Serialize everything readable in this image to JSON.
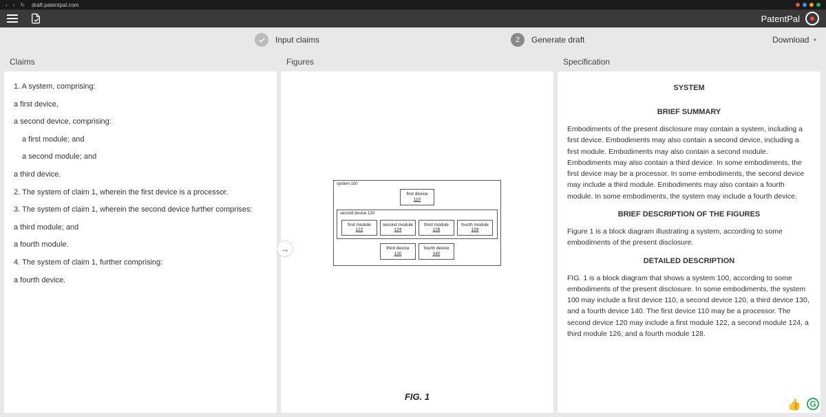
{
  "browser": {
    "url": "draft.patentpal.com",
    "ext_colors": [
      "#e74c3c",
      "#3498db",
      "#f39c12",
      "#27ae60"
    ]
  },
  "header": {
    "brand": "PatentPal"
  },
  "stepper": {
    "step1_label": "Input claims",
    "step2_number": "2",
    "step2_label": "Generate draft",
    "download_label": "Download"
  },
  "section_headers": {
    "claims": "Claims",
    "figures": "Figures",
    "specification": "Specification"
  },
  "claims": {
    "lines": [
      {
        "text": "1. A system, comprising:",
        "indent": 0
      },
      {
        "text": "a first device,",
        "indent": 0
      },
      {
        "text": "a second device, comprising:",
        "indent": 0
      },
      {
        "text": "a first module; and",
        "indent": 1
      },
      {
        "text": "a second module; and",
        "indent": 1
      },
      {
        "text": "a third device.",
        "indent": 0
      },
      {
        "text": "2. The system of claim 1, wherein the first device is a processor.",
        "indent": 0
      },
      {
        "text": "3. The system of claim 1, wherein the second device further comprises:",
        "indent": 0
      },
      {
        "text": "a third module; and",
        "indent": 0
      },
      {
        "text": "a fourth module.",
        "indent": 0
      },
      {
        "text": "4. The system of claim 1, further comprising:",
        "indent": 0
      },
      {
        "text": "a fourth device.",
        "indent": 0
      }
    ]
  },
  "figure": {
    "system_label": "system",
    "system_num": "100",
    "first_device": {
      "label": "first device",
      "num": "110"
    },
    "second_device_label": "second device",
    "second_device_num": "120",
    "modules": [
      {
        "label": "first module",
        "num": "122"
      },
      {
        "label": "second module",
        "num": "124"
      },
      {
        "label": "third module",
        "num": "126"
      },
      {
        "label": "fourth module",
        "num": "128"
      }
    ],
    "bottom": [
      {
        "label": "third device",
        "num": "130"
      },
      {
        "label": "fourth device",
        "num": "140"
      }
    ],
    "caption": "FIG. 1",
    "border_color": "#555555",
    "text_color": "#222222"
  },
  "spec": {
    "title": "SYSTEM",
    "h_summary": "BRIEF SUMMARY",
    "p_summary": "Embodiments of the present disclosure may contain a system, including a first device. Embodiments may also contain a second device, including a first module. Embodiments may also contain a second module. Embodiments may also contain a third device. In some embodiments, the first device may be a processor. In some embodiments, the second device may include a third module. Embodiments may also contain a fourth module. In some embodiments, the system may include a fourth device.",
    "h_figures": "BRIEF DESCRIPTION OF THE FIGURES",
    "p_figures": "Figure 1 is a block diagram illustrating a system, according to some embodiments of the present disclosure.",
    "h_detailed": "DETAILED DESCRIPTION",
    "p_detailed": "FIG. 1 is a block diagram that shows a system 100, according to some embodiments of the present disclosure. In some embodiments, the system 100 may include a first device 110, a second device 120, a third device 130, and a fourth device 140. The first device 110 may be a processor. The second device 120 may include a first module 122, a second module 124, a third module 126, and a fourth module 128."
  },
  "helpers": {
    "thumbs": "👍",
    "g_color": "#27ae60"
  }
}
